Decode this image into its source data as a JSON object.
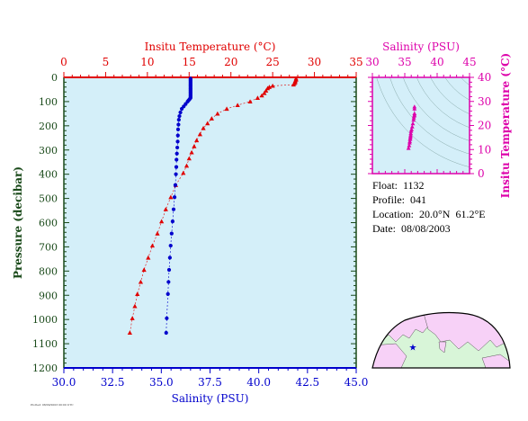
{
  "colors": {
    "temperature": "#e00000",
    "salinity": "#0000cc",
    "pressure_axis": "#1a4a1a",
    "inset": "#dd00aa",
    "plot_bg": "#d4eff9",
    "land": "#f7d1f7",
    "land_green": "#d8f5d8"
  },
  "chart_data": [
    {
      "type": "scatter",
      "top_axis": {
        "label": "Insitu Temperature (°C)",
        "range": [
          0,
          35
        ],
        "ticks": [
          "0",
          "5",
          "10",
          "15",
          "20",
          "25",
          "30",
          "35"
        ]
      },
      "bottom_axis": {
        "label": "Salinity (PSU)",
        "range": [
          30.0,
          45.0
        ],
        "ticks": [
          "30.0",
          "32.5",
          "35.0",
          "37.5",
          "40.0",
          "42.5",
          "45.0"
        ]
      },
      "left_axis": {
        "label": "Pressure (decibar)",
        "range": [
          0,
          1200
        ],
        "reversed": true,
        "ticks": [
          "0",
          "100",
          "200",
          "300",
          "400",
          "500",
          "600",
          "700",
          "800",
          "900",
          "1000",
          "1100",
          "1200"
        ]
      },
      "series": [
        {
          "name": "Insitu Temperature (°C)",
          "marker": "triangle",
          "pressure": [
            5,
            10,
            15,
            20,
            25,
            30,
            35,
            40,
            45,
            55,
            65,
            75,
            85,
            100,
            115,
            130,
            150,
            170,
            190,
            210,
            235,
            260,
            285,
            310,
            335,
            365,
            395,
            445,
            495,
            545,
            595,
            645,
            695,
            745,
            795,
            845,
            895,
            945,
            995,
            1055
          ],
          "values": [
            27.8,
            27.8,
            27.7,
            27.7,
            27.6,
            27.5,
            25.0,
            24.6,
            24.4,
            24.2,
            24.0,
            23.7,
            23.2,
            22.3,
            20.8,
            19.5,
            18.4,
            17.7,
            17.2,
            16.7,
            16.3,
            15.9,
            15.6,
            15.3,
            15.0,
            14.7,
            14.3,
            13.4,
            12.8,
            12.2,
            11.7,
            11.2,
            10.6,
            10.1,
            9.6,
            9.2,
            8.8,
            8.5,
            8.2,
            7.9
          ]
        },
        {
          "name": "Salinity (PSU)",
          "marker": "circle",
          "pressure": [
            5,
            10,
            15,
            20,
            25,
            30,
            35,
            40,
            45,
            50,
            55,
            60,
            65,
            70,
            75,
            80,
            85,
            90,
            95,
            100,
            110,
            120,
            130,
            145,
            160,
            175,
            195,
            215,
            240,
            265,
            290,
            315,
            340,
            370,
            400,
            445,
            495,
            545,
            595,
            645,
            695,
            745,
            795,
            845,
            895,
            995,
            1055
          ],
          "values": [
            36.5,
            36.5,
            36.5,
            36.5,
            36.5,
            36.5,
            36.5,
            36.5,
            36.5,
            36.5,
            36.5,
            36.5,
            36.5,
            36.5,
            36.5,
            36.5,
            36.5,
            36.45,
            36.4,
            36.35,
            36.25,
            36.15,
            36.05,
            35.98,
            35.93,
            35.9,
            35.88,
            35.86,
            35.85,
            35.84,
            35.82,
            35.8,
            35.78,
            35.77,
            35.75,
            35.72,
            35.68,
            35.63,
            35.58,
            35.53,
            35.48,
            35.44,
            35.4,
            35.37,
            35.34,
            35.28,
            35.25
          ]
        }
      ]
    },
    {
      "type": "scatter",
      "top_axis": {
        "label": "Salinity (PSU)",
        "range": [
          30,
          45
        ],
        "ticks": [
          "30",
          "35",
          "40",
          "45"
        ]
      },
      "right_axis": {
        "label": "Insitu Temperature (°C)",
        "range": [
          0,
          40
        ],
        "ticks": [
          "0",
          "10",
          "20",
          "30",
          "40"
        ]
      },
      "series": [
        {
          "marker": "triangle",
          "salinity": [
            36.5,
            36.5,
            36.5,
            36.5,
            36.45,
            36.4,
            36.35,
            36.25,
            36.15,
            36.05,
            35.98,
            35.93,
            35.9,
            35.88,
            35.85,
            35.82,
            35.78,
            35.75,
            35.68,
            35.58
          ],
          "temperature": [
            27.8,
            27.0,
            25.0,
            24.4,
            24.0,
            23.2,
            22.3,
            20.8,
            19.5,
            18.4,
            17.7,
            16.7,
            15.9,
            15.3,
            14.7,
            14.3,
            13.4,
            12.8,
            11.7,
            10.6
          ]
        }
      ]
    }
  ],
  "info": {
    "float": "Float:  1132",
    "profile": "Profile:  041",
    "location": "Location:  20.0°N  61.2°E",
    "date": "Date:  08/08/2003"
  },
  "map": {
    "marker_lat": 20.0,
    "marker_lon": 61.2
  },
  "footnote": "Plotted: 08/09/2003 00:00 UTC"
}
